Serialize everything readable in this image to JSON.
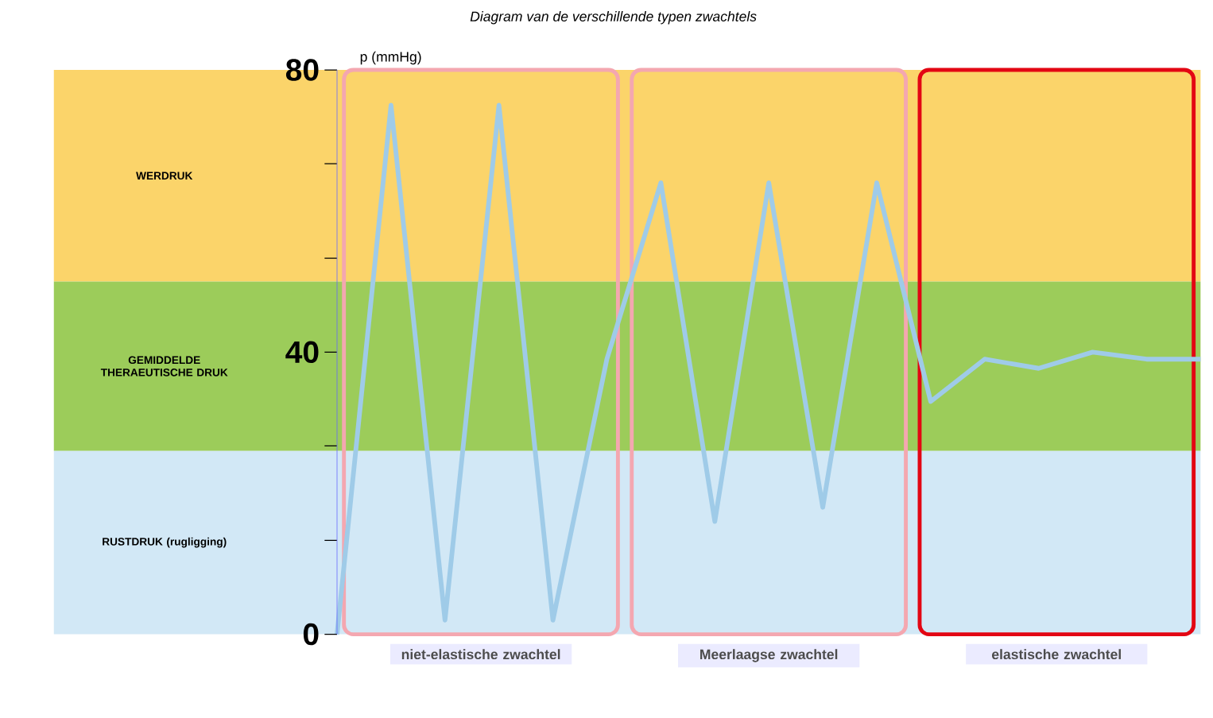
{
  "chart_data": {
    "type": "line",
    "title": "Diagram van de verschillende typen zwachtels",
    "ylabel": "p (mmHg)",
    "categories": [
      null,
      null,
      null,
      null,
      null,
      null,
      null,
      null,
      null,
      null,
      null,
      null,
      null,
      null,
      null,
      null,
      null
    ],
    "series": [
      {
        "color": "#9fcbe8",
        "values": [
          0,
          75,
          2,
          75,
          2,
          39,
          64,
          16,
          64,
          18,
          64,
          33,
          39,
          37.7,
          40,
          39,
          39
        ]
      }
    ],
    "ylim": [
      0,
      80
    ],
    "yticks": [
      0,
      {
        "value": 13.3,
        "label": null
      },
      {
        "value": 26.7,
        "label": null
      },
      40,
      {
        "value": 53.3,
        "label": null
      },
      {
        "value": 66.7,
        "label": null
      },
      80
    ],
    "tick_labels": "y",
    "marker": "none",
    "line_style": "solid",
    "grid": false,
    "bands": [
      {
        "axis": "y",
        "from": 50,
        "to": 80,
        "label": "WERDRUK",
        "color": "#fbd46a"
      },
      {
        "axis": "y",
        "from": 26,
        "to": 50,
        "label": "GEMIDDELDE THERAEUTISCHE DRUK",
        "color": "#9ccc5a"
      },
      {
        "axis": "y",
        "from": 0,
        "to": 26,
        "label": "RUSTDRUK (rugligging)",
        "color": "#d2e8f6"
      }
    ],
    "annotations": [
      "niet-elastische zwachtel",
      "Meerlaagse zwachtel",
      "elastische zwachtel"
    ]
  }
}
